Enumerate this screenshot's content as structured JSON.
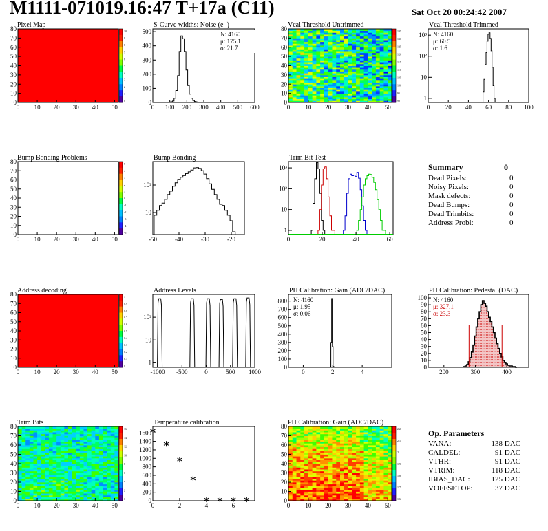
{
  "header": {
    "title": "M1111-071019.16:47 T+17a (C11)",
    "date": "Sat Oct 20 00:24:42 2007"
  },
  "colors": {
    "map_red": "#ff0000",
    "red_line": "#cc0000",
    "blue_line": "#0000cc",
    "green_line": "#00cc00"
  },
  "chart_data": [
    {
      "id": "pixel-map",
      "type": "heatmap",
      "title": "Pixel Map",
      "xlim": [
        0,
        52
      ],
      "ylim": [
        0,
        80
      ],
      "x_ticks": [
        "0",
        "10",
        "20",
        "30",
        "40",
        "50"
      ],
      "y_ticks": [
        "0",
        "10",
        "20",
        "30",
        "40",
        "50",
        "60",
        "70",
        "80"
      ],
      "scale_ticks": [
        "10",
        "9",
        "8",
        "7",
        "6",
        "5",
        "4",
        "3",
        "2",
        "1",
        "0"
      ],
      "value": 10
    },
    {
      "id": "scurve-noise",
      "type": "histogram",
      "title": "S-Curve widths: Noise (e⁻)",
      "xlim": [
        0,
        600
      ],
      "ylim": [
        0,
        520
      ],
      "x_ticks": [
        "0",
        "100",
        "200",
        "300",
        "400",
        "500",
        "600"
      ],
      "y_ticks": [
        "0",
        "100",
        "200",
        "300",
        "400",
        "500"
      ],
      "stats": {
        "N": "N: 4160",
        "mu": "μ:  175.1",
        "sigma": "σ:  21.7"
      },
      "bins_x": [
        100,
        110,
        120,
        130,
        140,
        150,
        160,
        170,
        180,
        190,
        200,
        210,
        220,
        230,
        240,
        250,
        260,
        270,
        280,
        290
      ],
      "values": [
        2,
        5,
        10,
        30,
        85,
        190,
        360,
        470,
        450,
        360,
        230,
        120,
        60,
        30,
        14,
        7,
        4,
        2,
        1,
        0
      ]
    },
    {
      "id": "vcal-untrimmed",
      "type": "heatmap",
      "title": "Vcal Threshold Untrimmed",
      "xlim": [
        0,
        52
      ],
      "ylim": [
        0,
        80
      ],
      "x_ticks": [
        "0",
        "10",
        "20",
        "30",
        "40",
        "50"
      ],
      "y_ticks": [
        "0",
        "10",
        "20",
        "30",
        "40",
        "50",
        "60",
        "70",
        "80"
      ],
      "scale_ticks": [
        "135",
        "130",
        "125",
        "120",
        "115",
        "110",
        "105",
        "100",
        "95",
        "90"
      ]
    },
    {
      "id": "vcal-trimmed",
      "type": "histogram",
      "title": "Vcal Threshold Trimmed",
      "log_y": true,
      "xlim": [
        0,
        100
      ],
      "ylim_decades": [
        -0.2,
        3.3
      ],
      "x_ticks": [
        "0",
        "20",
        "40",
        "60",
        "80",
        "100"
      ],
      "y_ticks": [
        "1",
        "10",
        "10²",
        "10³"
      ],
      "stats": {
        "N": "N: 4160",
        "mu": "μ:  60.5",
        "sigma": "σ:   1.6"
      },
      "bins_x": [
        55,
        56,
        57,
        58,
        59,
        60,
        61,
        62,
        63,
        64,
        65,
        66
      ],
      "values": [
        2,
        8,
        40,
        150,
        520,
        1100,
        1300,
        700,
        180,
        30,
        4,
        1
      ]
    },
    {
      "id": "bump-bonding-problems",
      "type": "heatmap",
      "title": "Bump Bonding Problems",
      "xlim": [
        0,
        52
      ],
      "ylim": [
        0,
        80
      ],
      "x_ticks": [
        "0",
        "10",
        "20",
        "30",
        "40",
        "50"
      ],
      "y_ticks": [
        "0",
        "10",
        "20",
        "30",
        "40",
        "50",
        "60",
        "70",
        "80"
      ],
      "scale_ticks": [
        "5",
        "4",
        "3",
        "2",
        "1",
        "0",
        "-1",
        "-2",
        "-3",
        "-4",
        "-5"
      ]
    },
    {
      "id": "bump-bonding",
      "type": "histogram",
      "title": "Bump Bonding",
      "log_y": true,
      "xlim": [
        -50,
        -15
      ],
      "ylim_decades": [
        0.2,
        2.85
      ],
      "x_ticks": [
        "-50",
        "-40",
        "-30",
        "-20"
      ],
      "y_ticks": [
        "10",
        "10²"
      ],
      "bins_x": [
        -49,
        -48,
        -47,
        -46,
        -45,
        -44,
        -43,
        -42,
        -41,
        -40,
        -39,
        -38,
        -37,
        -36,
        -35,
        -34,
        -33,
        -32,
        -31,
        -30,
        -29,
        -28,
        -27,
        -26,
        -25,
        -24,
        -23,
        -22,
        -21,
        -20,
        -19
      ],
      "values": [
        8,
        12,
        18,
        22,
        30,
        45,
        60,
        90,
        120,
        160,
        190,
        220,
        260,
        300,
        350,
        420,
        430,
        400,
        330,
        250,
        170,
        110,
        70,
        45,
        30,
        20,
        18,
        12,
        8,
        5,
        2
      ]
    },
    {
      "id": "trim-bit-test",
      "type": "histogram",
      "title": "Trim Bit Test",
      "log_y": true,
      "xlim": [
        0,
        62
      ],
      "ylim_decades": [
        -0.2,
        3.3
      ],
      "x_ticks": [
        "0",
        "20",
        "40",
        "60"
      ],
      "y_ticks": [
        "1",
        "10",
        "10²",
        "10³"
      ],
      "series": [
        {
          "color": "#000000",
          "bins_x": [
            14,
            15,
            16,
            17,
            18,
            19,
            20,
            21
          ],
          "values": [
            1,
            20,
            300,
            1800,
            900,
            60,
            3,
            1
          ]
        },
        {
          "color": "#cc0000",
          "bins_x": [
            18,
            19,
            20,
            21,
            22,
            23,
            24,
            25,
            26,
            27
          ],
          "values": [
            1,
            10,
            150,
            900,
            1100,
            300,
            40,
            5,
            1,
            1
          ]
        },
        {
          "color": "#0000cc",
          "bins_x": [
            33,
            34,
            35,
            36,
            37,
            38,
            39,
            40,
            41,
            42,
            43,
            44,
            45,
            46
          ],
          "values": [
            1,
            5,
            60,
            300,
            500,
            420,
            450,
            380,
            600,
            320,
            90,
            15,
            3,
            1
          ]
        },
        {
          "color": "#00cc00",
          "bins_x": [
            41,
            42,
            43,
            44,
            45,
            46,
            47,
            48,
            49,
            50,
            51,
            52,
            53,
            54,
            55,
            56,
            57
          ],
          "values": [
            1,
            3,
            10,
            40,
            150,
            300,
            420,
            500,
            480,
            350,
            200,
            90,
            30,
            10,
            3,
            1,
            1
          ]
        }
      ]
    },
    {
      "id": "address-decoding",
      "type": "heatmap",
      "title": "Address decoding",
      "xlim": [
        0,
        52
      ],
      "ylim": [
        0,
        80
      ],
      "x_ticks": [
        "0",
        "10",
        "20",
        "30",
        "40",
        "50"
      ],
      "y_ticks": [
        "0",
        "10",
        "20",
        "30",
        "40",
        "50",
        "60",
        "70",
        "80"
      ],
      "scale_ticks": [
        "1",
        "0.9",
        "0.8",
        "0.7",
        "0.6",
        "0.5",
        "0.4",
        "0.3",
        "0.2",
        "0.1",
        "0"
      ],
      "value": 1
    },
    {
      "id": "address-levels",
      "type": "histogram",
      "title": "Address Levels",
      "log_y": true,
      "xlim": [
        -1100,
        1000
      ],
      "ylim_decades": [
        -0.2,
        3.0
      ],
      "x_ticks": [
        "-1000",
        "-500",
        "0",
        "500",
        "1000"
      ],
      "y_ticks": [
        "1",
        "10",
        "10²"
      ],
      "peaks_x": [
        -950,
        -280,
        50,
        320,
        600,
        870
      ],
      "peak_values": [
        650,
        650,
        650,
        600,
        650,
        700
      ]
    },
    {
      "id": "ph-gain",
      "type": "histogram",
      "title": "PH Calibration: Gain (ADC/DAC)",
      "xlim": [
        -1,
        6
      ],
      "ylim": [
        0,
        880
      ],
      "x_ticks": [
        "0",
        "2",
        "4"
      ],
      "y_ticks": [
        "0",
        "100",
        "200",
        "300",
        "400",
        "500",
        "600",
        "700",
        "800"
      ],
      "stats": {
        "N": "N: 4160",
        "mu": "μ:  1.95",
        "sigma": "σ:  0.06"
      },
      "bins_x": [
        1.85,
        1.9,
        1.95,
        2.0,
        2.05
      ],
      "values": [
        10,
        300,
        830,
        250,
        10
      ]
    },
    {
      "id": "ph-pedestal",
      "type": "histogram",
      "title": "PH Calibration: Pedestal (DAC)",
      "xlim": [
        150,
        470
      ],
      "ylim": [
        0,
        105
      ],
      "x_ticks": [
        "200",
        "300",
        "400"
      ],
      "y_ticks": [
        "0",
        "10",
        "20",
        "30",
        "40",
        "50",
        "60",
        "70",
        "80",
        "90",
        "100"
      ],
      "stats": {
        "N": "N: 4160",
        "mu": "μ:  327.1",
        "sigma": "σ:  23.3"
      },
      "cut_lines_x": [
        280,
        385
      ],
      "bins_x": [
        265,
        270,
        275,
        280,
        285,
        290,
        295,
        300,
        305,
        310,
        315,
        320,
        325,
        330,
        335,
        340,
        345,
        350,
        355,
        360,
        365,
        370,
        375,
        380,
        385,
        390,
        395,
        400,
        405,
        410,
        415,
        420,
        425,
        430
      ],
      "values": [
        1,
        2,
        4,
        8,
        14,
        22,
        32,
        45,
        58,
        70,
        80,
        90,
        96,
        92,
        88,
        80,
        72,
        66,
        58,
        50,
        42,
        34,
        27,
        20,
        15,
        10,
        7,
        5,
        3,
        2,
        2,
        1,
        1,
        0
      ]
    },
    {
      "id": "trim-bits",
      "type": "heatmap",
      "title": "Trim Bits",
      "xlim": [
        0,
        52
      ],
      "ylim": [
        0,
        80
      ],
      "x_ticks": [
        "0",
        "10",
        "20",
        "30",
        "40",
        "50"
      ],
      "y_ticks": [
        "0",
        "10",
        "20",
        "30",
        "40",
        "50",
        "60",
        "70",
        "80"
      ],
      "scale_ticks": [
        "16",
        "14",
        "12",
        "10",
        "8",
        "6",
        "4",
        "2",
        "0"
      ]
    },
    {
      "id": "temperature-calibration",
      "type": "scatter",
      "title": "Temperature calibration",
      "xlim": [
        0,
        7.6
      ],
      "ylim": [
        0,
        1750
      ],
      "x_ticks": [
        "0",
        "2",
        "4",
        "6"
      ],
      "y_ticks": [
        "0",
        "200",
        "400",
        "600",
        "800",
        "1000",
        "1200",
        "1400",
        "1600"
      ],
      "x": [
        0,
        1,
        2,
        3,
        4,
        5,
        6,
        7
      ],
      "y": [
        1650,
        1340,
        970,
        520,
        30,
        30,
        30,
        30
      ]
    },
    {
      "id": "ph-gain-map",
      "type": "heatmap",
      "title": "PH Calibration: Gain (ADC/DAC)",
      "xlim": [
        0,
        52
      ],
      "ylim": [
        0,
        80
      ],
      "x_ticks": [
        "0",
        "10",
        "20",
        "30",
        "40",
        "50"
      ],
      "y_ticks": [
        "0",
        "10",
        "20",
        "30",
        "40",
        "50",
        "60",
        "70",
        "80"
      ],
      "scale_ticks": [
        "2.2",
        "2.1",
        "2",
        "1.9",
        "1.8",
        "1.7",
        "1.6"
      ]
    }
  ],
  "summary": {
    "title": "Summary",
    "total": "0",
    "rows": [
      {
        "label": "Dead Pixels:",
        "value": "0"
      },
      {
        "label": "Noisy Pixels:",
        "value": "0"
      },
      {
        "label": "Mask defects:",
        "value": "0"
      },
      {
        "label": "Dead Bumps:",
        "value": "0"
      },
      {
        "label": "Dead Trimbits:",
        "value": "0"
      },
      {
        "label": "Address Probl:",
        "value": "0"
      }
    ]
  },
  "op_params": {
    "title": "Op. Parameters",
    "rows": [
      {
        "label": "VANA:",
        "value": "138 DAC"
      },
      {
        "label": "CALDEL:",
        "value": "91 DAC"
      },
      {
        "label": "VTHR:",
        "value": "91 DAC"
      },
      {
        "label": "VTRIM:",
        "value": "118 DAC"
      },
      {
        "label": "IBIAS_DAC:",
        "value": "125 DAC"
      },
      {
        "label": "VOFFSETOP:",
        "value": "37 DAC"
      }
    ]
  }
}
